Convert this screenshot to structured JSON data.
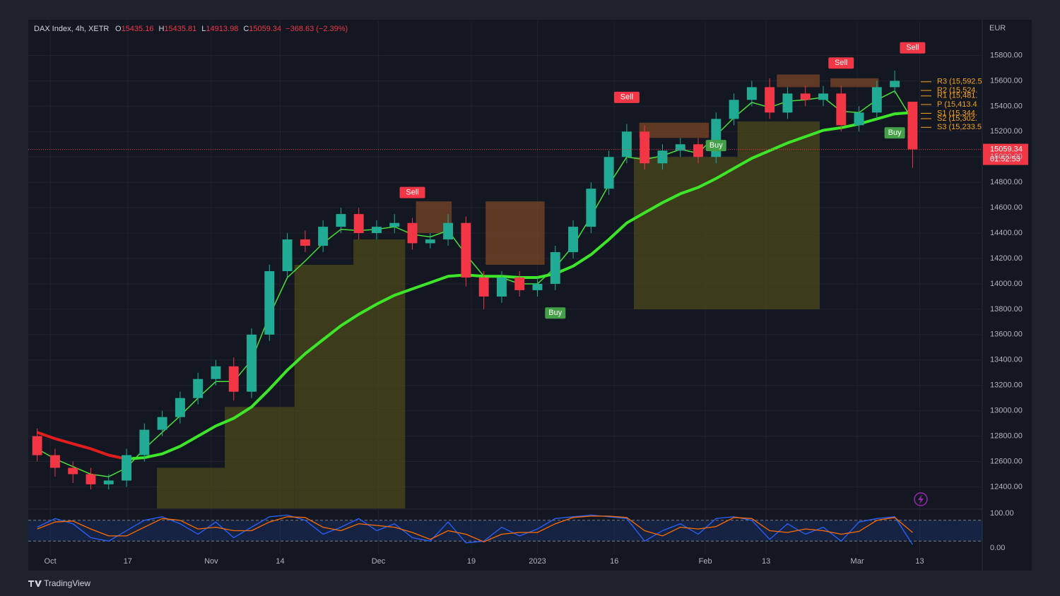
{
  "chart_data": {
    "type": "candlestick",
    "title": "DAX Index, 4h, XETR",
    "ohlc_labels": [
      "O",
      "H",
      "L",
      "C"
    ],
    "change": "−368.63 (−2.39%)",
    "currency": "EUR",
    "countdown": "01:52:53",
    "watermark": "TradingView",
    "up_color": "#22ab94",
    "down_color": "#f23645",
    "xlim": [
      -0.5,
      52.9
    ],
    "xticks": [
      {
        "value": 0.73,
        "label": "Oct"
      },
      {
        "value": 5.07,
        "label": "17"
      },
      {
        "value": 9.74,
        "label": "Nov"
      },
      {
        "value": 13.6,
        "label": "14"
      },
      {
        "value": 19.1,
        "label": "Dec"
      },
      {
        "value": 24.3,
        "label": "19"
      },
      {
        "value": 28.0,
        "label": "2023"
      },
      {
        "value": 32.3,
        "label": "16"
      },
      {
        "value": 37.4,
        "label": "Feb"
      },
      {
        "value": 40.8,
        "label": "13"
      },
      {
        "value": 45.9,
        "label": "Mar"
      },
      {
        "value": 49.4,
        "label": "13"
      }
    ],
    "ylim": [
      12230,
      16070
    ],
    "yticks": [
      {
        "value": 12400,
        "label": "12400.00"
      },
      {
        "value": 12600,
        "label": "12600.00"
      },
      {
        "value": 12800,
        "label": "12800.00"
      },
      {
        "value": 13000,
        "label": "13000.00"
      },
      {
        "value": 13200,
        "label": "13200.00"
      },
      {
        "value": 13400,
        "label": "13400.00"
      },
      {
        "value": 13600,
        "label": "13600.00"
      },
      {
        "value": 13800,
        "label": "13800.00"
      },
      {
        "value": 14000,
        "label": "14000.00"
      },
      {
        "value": 14200,
        "label": "14200.00"
      },
      {
        "value": 14400,
        "label": "14400.00"
      },
      {
        "value": 14600,
        "label": "14600.00"
      },
      {
        "value": 14800,
        "label": "14800.00"
      },
      {
        "value": 15000,
        "label": "15000.00"
      },
      {
        "value": 15200,
        "label": "15200.00"
      },
      {
        "value": 15400,
        "label": "15400.00"
      },
      {
        "value": 15600,
        "label": "15600.00"
      },
      {
        "value": 15800,
        "label": "15800.00"
      }
    ],
    "grid": true,
    "open": [
      12800,
      12650,
      12550,
      12500,
      12420,
      12450,
      12650,
      12850,
      12950,
      13100,
      13250,
      13350,
      13150,
      13600,
      14100,
      14350,
      14300,
      14450,
      14550,
      14400,
      14450,
      14480,
      14320,
      14350,
      14480,
      14050,
      13900,
      14050,
      13950,
      14000,
      14250,
      14450,
      14750,
      15000,
      15200,
      14950,
      15050,
      15100,
      15000,
      15300,
      15450,
      15550,
      15350,
      15500,
      15450,
      15500,
      15250,
      15350,
      15550,
      15435.16
    ],
    "high": [
      12860,
      12700,
      12600,
      12550,
      12500,
      12700,
      12900,
      13000,
      13150,
      13300,
      13400,
      13420,
      13650,
      14150,
      14400,
      14420,
      14500,
      14600,
      14600,
      14500,
      14550,
      14520,
      14400,
      14550,
      14530,
      14100,
      14100,
      14100,
      14050,
      14300,
      14500,
      14800,
      15050,
      15260,
      15250,
      15100,
      15150,
      15150,
      15350,
      15500,
      15600,
      15620,
      15550,
      15560,
      15560,
      15560,
      15400,
      15600,
      15680,
      15435.81
    ],
    "low": [
      12600,
      12480,
      12430,
      12380,
      12380,
      12400,
      12600,
      12800,
      12900,
      13050,
      13200,
      13080,
      13100,
      13550,
      14050,
      14250,
      14250,
      14400,
      14350,
      14350,
      14400,
      14270,
      14280,
      14300,
      13980,
      13800,
      13850,
      13900,
      13900,
      13950,
      14200,
      14400,
      14700,
      14950,
      14900,
      14900,
      15000,
      14950,
      14950,
      15250,
      15400,
      15300,
      15300,
      15400,
      15400,
      15200,
      15200,
      15300,
      15500,
      14913.98
    ],
    "close": [
      12650,
      12550,
      12500,
      12420,
      12450,
      12650,
      12850,
      12950,
      13100,
      13250,
      13350,
      13150,
      13600,
      14100,
      14350,
      14300,
      14450,
      14550,
      14400,
      14450,
      14480,
      14320,
      14350,
      14480,
      14050,
      13900,
      14050,
      13950,
      14000,
      14250,
      14450,
      14750,
      15000,
      15200,
      14950,
      15050,
      15100,
      15000,
      15300,
      15450,
      15550,
      15350,
      15500,
      15450,
      15500,
      15250,
      15350,
      15550,
      15600,
      15059.34
    ],
    "lines": [
      {
        "color": "#4ade3a",
        "width": 1.5,
        "values": [
          12700,
          12620,
          12560,
          12500,
          12480,
          12550,
          12700,
          12830,
          12960,
          13100,
          13230,
          13230,
          13400,
          13750,
          14050,
          14180,
          14320,
          14430,
          14420,
          14430,
          14450,
          14390,
          14370,
          14420,
          14230,
          14060,
          14050,
          14000,
          14000,
          14130,
          14300,
          14530,
          14780,
          15000,
          14980,
          15010,
          15060,
          15030,
          15170,
          15310,
          15430,
          15390,
          15440,
          15450,
          15470,
          15360,
          15350,
          15450,
          15520,
          15290
        ]
      },
      {
        "color": "#3ee62a",
        "width": 4,
        "values": [
          null,
          null,
          null,
          null,
          null,
          12620,
          12630,
          12660,
          12720,
          12800,
          12880,
          12940,
          13030,
          13170,
          13320,
          13450,
          13560,
          13670,
          13760,
          13840,
          13910,
          13960,
          14010,
          14060,
          14070,
          14060,
          14060,
          14050,
          14050,
          14080,
          14140,
          14230,
          14350,
          14480,
          14560,
          14640,
          14710,
          14760,
          14830,
          14910,
          14990,
          15050,
          15110,
          15160,
          15210,
          15230,
          15260,
          15300,
          15340,
          15350
        ]
      },
      {
        "color": "#e01e1e",
        "width": 4,
        "values": [
          12830,
          12780,
          12740,
          12700,
          12650,
          12620,
          null,
          null,
          null,
          null,
          null,
          null,
          null,
          null,
          null,
          null,
          null,
          null,
          null,
          null,
          null,
          null,
          null,
          null,
          null,
          null,
          null,
          null,
          null,
          null,
          null,
          null,
          null,
          null,
          null,
          null,
          null,
          null,
          null,
          null,
          null,
          null,
          null,
          null,
          null,
          null,
          null,
          null,
          null,
          null
        ]
      }
    ],
    "zones": [
      {
        "x": [
          6.7,
          10.5
        ],
        "y": [
          12230,
          12550
        ],
        "color": "#4b4a1c"
      },
      {
        "x": [
          10.5,
          14.4
        ],
        "y": [
          12230,
          13030
        ],
        "color": "#4b4a1c"
      },
      {
        "x": [
          14.4,
          20.6
        ],
        "y": [
          12230,
          14150
        ],
        "color": "#4b4a1c"
      },
      {
        "x": [
          17.7,
          20.6
        ],
        "y": [
          14150,
          14350
        ],
        "color": "#4b4a1c"
      },
      {
        "x": [
          33.4,
          43.8
        ],
        "y": [
          13800,
          15000
        ],
        "color": "#4b4a1c"
      },
      {
        "x": [
          39.2,
          43.8
        ],
        "y": [
          15000,
          15280
        ],
        "color": "#4b4a1c"
      },
      {
        "x": [
          21.2,
          23.2
        ],
        "y": [
          14400,
          14650
        ],
        "color": "#7a4526"
      },
      {
        "x": [
          25.1,
          28.4
        ],
        "y": [
          14150,
          14650
        ],
        "color": "#7a4526"
      },
      {
        "x": [
          33.7,
          37.6
        ],
        "y": [
          15150,
          15270
        ],
        "color": "#7a4526"
      },
      {
        "x": [
          41.4,
          43.8
        ],
        "y": [
          15550,
          15650
        ],
        "color": "#7a4526"
      },
      {
        "x": [
          44.4,
          47.1
        ],
        "y": [
          15550,
          15620
        ],
        "color": "#7a4526"
      }
    ],
    "pivots": [
      {
        "label": "R3 (15,592.5",
        "value": 15592.5
      },
      {
        "label": "R2 (15,524.",
        "value": 15524
      },
      {
        "label": "R1 (15,481.",
        "value": 15481
      },
      {
        "label": "P (15,413.4",
        "value": 15413.4
      },
      {
        "label": "S1 (15,344.",
        "value": 15344
      },
      {
        "label": "S2 (15,302.",
        "value": 15302
      },
      {
        "label": "S3 (15,233.5",
        "value": 15233.5
      }
    ],
    "signals": [
      {
        "text": "Sell",
        "x": 21,
        "y": 14720,
        "color": "#f23645"
      },
      {
        "text": "Sell",
        "x": 33,
        "y": 15470,
        "color": "#f23645"
      },
      {
        "text": "Sell",
        "x": 45,
        "y": 15740,
        "color": "#f23645"
      },
      {
        "text": "Sell",
        "x": 49,
        "y": 15860,
        "color": "#f23645"
      },
      {
        "text": "Buy",
        "x": 29,
        "y": 13770,
        "color": "#43a047"
      },
      {
        "text": "Buy",
        "x": 38,
        "y": 15090,
        "color": "#43a047"
      },
      {
        "text": "Buy",
        "x": 48,
        "y": 15190,
        "color": "#43a047"
      }
    ],
    "oscillator": {
      "ylim": [
        -18,
        110
      ],
      "yticks": [
        {
          "value": 0,
          "label": "0.00"
        },
        {
          "value": 100,
          "label": "100.00"
        }
      ],
      "bands": [
        20,
        80
      ],
      "series": [
        {
          "color": "#2962ff",
          "values": [
            60,
            85,
            70,
            30,
            20,
            50,
            80,
            90,
            70,
            40,
            75,
            30,
            60,
            90,
            95,
            80,
            40,
            60,
            85,
            50,
            70,
            30,
            20,
            75,
            15,
            20,
            60,
            35,
            55,
            85,
            90,
            95,
            90,
            85,
            20,
            50,
            70,
            40,
            85,
            90,
            80,
            25,
            70,
            40,
            60,
            20,
            75,
            85,
            90,
            10
          ]
        },
        {
          "color": "#ff6d00",
          "values": [
            55,
            75,
            78,
            55,
            35,
            35,
            60,
            85,
            80,
            55,
            60,
            50,
            50,
            75,
            90,
            88,
            60,
            50,
            70,
            65,
            60,
            45,
            25,
            50,
            40,
            18,
            40,
            45,
            45,
            70,
            88,
            92,
            92,
            88,
            50,
            35,
            60,
            55,
            62,
            88,
            85,
            50,
            45,
            55,
            50,
            40,
            48,
            80,
            88,
            45
          ]
        }
      ]
    }
  }
}
